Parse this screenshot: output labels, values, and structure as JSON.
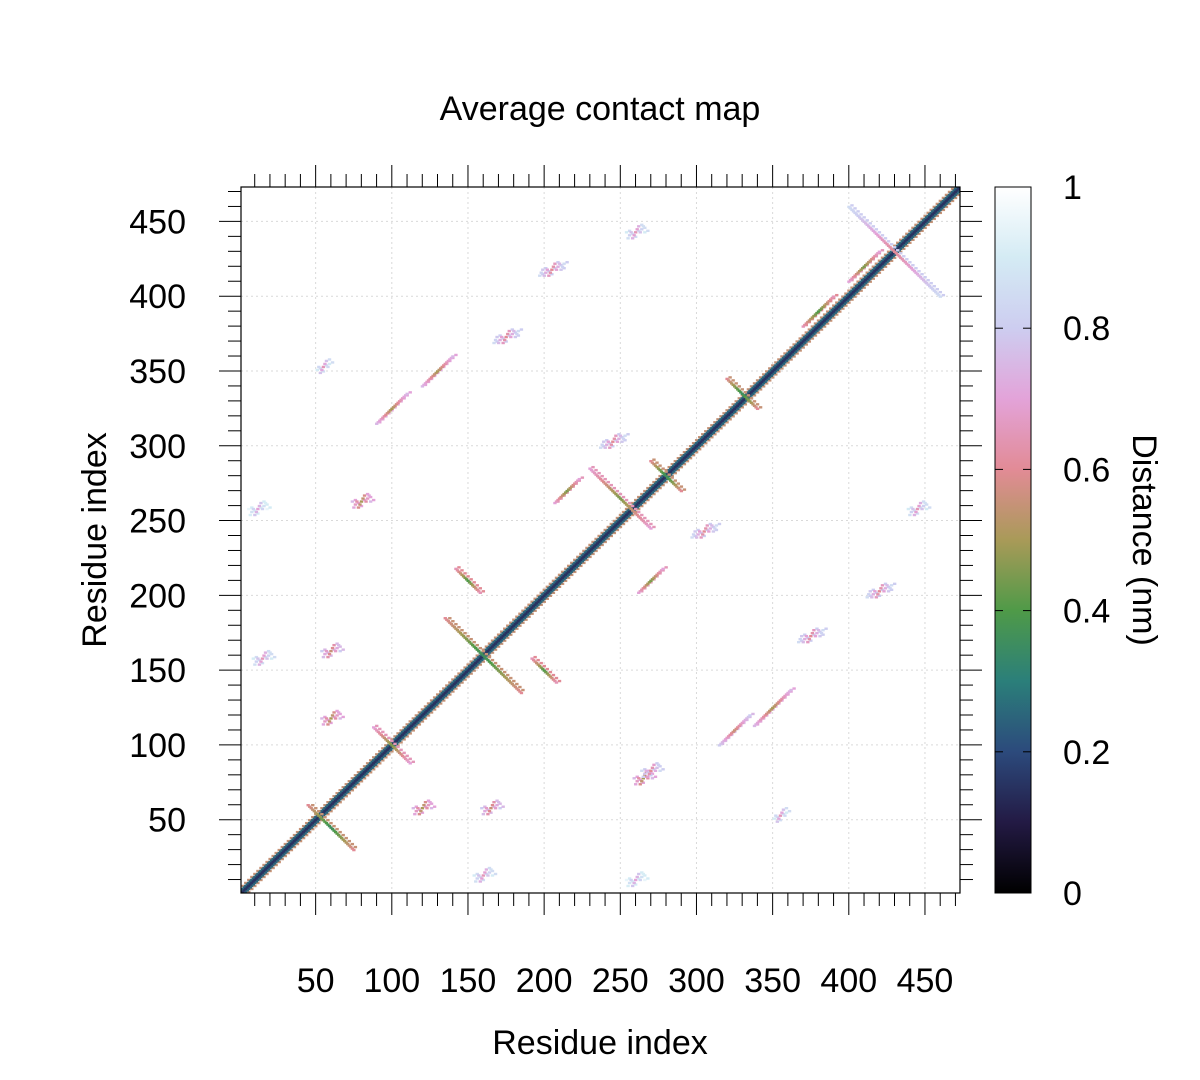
{
  "chart_data": {
    "type": "heatmap",
    "title": "Average contact map",
    "xlabel": "Residue index",
    "ylabel": "Residue index",
    "xlim": [
      1,
      473
    ],
    "ylim": [
      1,
      473
    ],
    "x_ticks": [
      50,
      100,
      150,
      200,
      250,
      300,
      350,
      400,
      450
    ],
    "y_ticks": [
      50,
      100,
      150,
      200,
      250,
      300,
      350,
      400,
      450
    ],
    "x_tick_labels": [
      "50",
      "100",
      "150",
      "200",
      "250",
      "300",
      "350",
      "400",
      "450"
    ],
    "y_tick_labels": [
      "50",
      "100",
      "150",
      "200",
      "250",
      "300",
      "350",
      "400",
      "450"
    ],
    "grid": true,
    "colorbar": {
      "label": "Distance (nm)",
      "range": [
        0,
        1
      ],
      "ticks": [
        0,
        0.2,
        0.4,
        0.6,
        0.8,
        1
      ],
      "tick_labels": [
        "0",
        "0.2",
        "0.4",
        "0.6",
        "0.8",
        "1"
      ],
      "colors": [
        {
          "stop": 0.0,
          "color": "#000000"
        },
        {
          "stop": 0.1,
          "color": "#231a44"
        },
        {
          "stop": 0.2,
          "color": "#2c4a7c"
        },
        {
          "stop": 0.3,
          "color": "#2b7f7a"
        },
        {
          "stop": 0.4,
          "color": "#4f9a48"
        },
        {
          "stop": 0.5,
          "color": "#a99a58"
        },
        {
          "stop": 0.6,
          "color": "#e28b96"
        },
        {
          "stop": 0.7,
          "color": "#e3a3d9"
        },
        {
          "stop": 0.8,
          "color": "#cdcdf0"
        },
        {
          "stop": 0.9,
          "color": "#d4ebf4"
        },
        {
          "stop": 1.0,
          "color": "#ffffff"
        }
      ]
    },
    "diagonal_distance": 0.15,
    "contact_features": [
      {
        "kind": "antiparallel",
        "center": [
          60,
          45
        ],
        "half_length": 15,
        "distance": 0.35
      },
      {
        "kind": "antiparallel",
        "center": [
          100,
          100
        ],
        "half_length": 12,
        "distance": 0.45
      },
      {
        "kind": "antiparallel",
        "center": [
          160,
          160
        ],
        "half_length": 25,
        "distance": 0.35
      },
      {
        "kind": "antiparallel",
        "center": [
          200,
          150
        ],
        "half_length": 8,
        "distance": 0.4
      },
      {
        "kind": "antiparallel",
        "center": [
          150,
          210
        ],
        "half_length": 8,
        "distance": 0.4
      },
      {
        "kind": "antiparallel",
        "center": [
          250,
          265
        ],
        "half_length": 20,
        "distance": 0.45
      },
      {
        "kind": "antiparallel",
        "center": [
          280,
          280
        ],
        "half_length": 10,
        "distance": 0.35
      },
      {
        "kind": "antiparallel",
        "center": [
          330,
          335
        ],
        "half_length": 10,
        "distance": 0.35
      },
      {
        "kind": "antiparallel",
        "center": [
          430,
          430
        ],
        "half_length": 30,
        "distance": 0.6
      },
      {
        "kind": "parallel",
        "center": [
          270,
          210
        ],
        "half_length": 8,
        "distance": 0.45
      },
      {
        "kind": "parallel",
        "center": [
          215,
          270
        ],
        "half_length": 8,
        "distance": 0.45
      },
      {
        "kind": "parallel",
        "center": [
          100,
          325
        ],
        "half_length": 10,
        "distance": 0.5
      },
      {
        "kind": "parallel",
        "center": [
          130,
          350
        ],
        "half_length": 10,
        "distance": 0.5
      },
      {
        "kind": "parallel",
        "center": [
          325,
          110
        ],
        "half_length": 10,
        "distance": 0.55
      },
      {
        "kind": "parallel",
        "center": [
          350,
          125
        ],
        "half_length": 12,
        "distance": 0.5
      },
      {
        "kind": "parallel",
        "center": [
          380,
          390
        ],
        "half_length": 10,
        "distance": 0.4
      },
      {
        "kind": "parallel",
        "center": [
          410,
          420
        ],
        "half_length": 10,
        "distance": 0.45
      },
      {
        "kind": "patch",
        "center": [
          60,
          120
        ],
        "half_length": 6,
        "distance": 0.5
      },
      {
        "kind": "patch",
        "center": [
          120,
          60
        ],
        "half_length": 6,
        "distance": 0.5
      },
      {
        "kind": "patch",
        "center": [
          60,
          165
        ],
        "half_length": 6,
        "distance": 0.55
      },
      {
        "kind": "patch",
        "center": [
          165,
          60
        ],
        "half_length": 6,
        "distance": 0.55
      },
      {
        "kind": "patch",
        "center": [
          80,
          265
        ],
        "half_length": 6,
        "distance": 0.5
      },
      {
        "kind": "patch",
        "center": [
          265,
          80
        ],
        "half_length": 6,
        "distance": 0.5
      },
      {
        "kind": "patch",
        "center": [
          270,
          85
        ],
        "half_length": 6,
        "distance": 0.6
      },
      {
        "kind": "patch",
        "center": [
          375,
          175
        ],
        "half_length": 8,
        "distance": 0.6
      },
      {
        "kind": "patch",
        "center": [
          175,
          375
        ],
        "half_length": 8,
        "distance": 0.6
      },
      {
        "kind": "patch",
        "center": [
          205,
          420
        ],
        "half_length": 8,
        "distance": 0.6
      },
      {
        "kind": "patch",
        "center": [
          420,
          205
        ],
        "half_length": 8,
        "distance": 0.6
      },
      {
        "kind": "patch",
        "center": [
          355,
          55
        ],
        "half_length": 4,
        "distance": 0.65
      },
      {
        "kind": "patch",
        "center": [
          55,
          355
        ],
        "half_length": 4,
        "distance": 0.65
      },
      {
        "kind": "patch",
        "center": [
          245,
          305
        ],
        "half_length": 8,
        "distance": 0.6
      },
      {
        "kind": "patch",
        "center": [
          305,
          245
        ],
        "half_length": 8,
        "distance": 0.6
      },
      {
        "kind": "patch",
        "center": [
          15,
          160
        ],
        "half_length": 6,
        "distance": 0.65
      },
      {
        "kind": "patch",
        "center": [
          160,
          15
        ],
        "half_length": 6,
        "distance": 0.65
      },
      {
        "kind": "patch",
        "center": [
          12,
          260
        ],
        "half_length": 6,
        "distance": 0.7
      },
      {
        "kind": "patch",
        "center": [
          260,
          12
        ],
        "half_length": 6,
        "distance": 0.7
      },
      {
        "kind": "patch",
        "center": [
          260,
          445
        ],
        "half_length": 6,
        "distance": 0.65
      },
      {
        "kind": "patch",
        "center": [
          445,
          260
        ],
        "half_length": 6,
        "distance": 0.65
      }
    ]
  }
}
